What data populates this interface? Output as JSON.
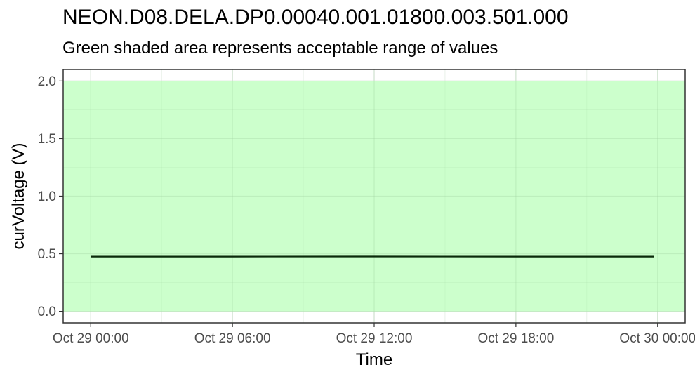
{
  "chart_data": {
    "type": "line",
    "title": "NEON.D08.DELA.DP0.00040.001.01800.003.501.000",
    "subtitle": "Green shaded area represents acceptable range of values",
    "xlabel": "Time",
    "ylabel": "curVoltage (V)",
    "xlim": [
      "2023-10-28T22:50",
      "2023-10-30T01:10"
    ],
    "ylim": [
      -0.1,
      2.1
    ],
    "x_ticks": [
      {
        "value": "2023-10-29T00:00",
        "label": "Oct 29 00:00"
      },
      {
        "value": "2023-10-29T06:00",
        "label": "Oct 29 06:00"
      },
      {
        "value": "2023-10-29T12:00",
        "label": "Oct 29 12:00"
      },
      {
        "value": "2023-10-29T18:00",
        "label": "Oct 29 18:00"
      },
      {
        "value": "2023-10-30T00:00",
        "label": "Oct 30 00:00"
      }
    ],
    "y_ticks": [
      0.0,
      0.5,
      1.0,
      1.5,
      2.0
    ],
    "y_tick_labels": [
      "0.0",
      "0.5",
      "1.0",
      "1.5",
      "2.0"
    ],
    "acceptable_range": {
      "min": 0.0,
      "max": 2.0,
      "color": "#ccffcc"
    },
    "series": [
      {
        "color": "#0a2a0a",
        "points": [
          {
            "x": "2023-10-29T00:00",
            "y": 0.475
          },
          {
            "x": "2023-10-29T06:00",
            "y": 0.475
          },
          {
            "x": "2023-10-29T12:00",
            "y": 0.476
          },
          {
            "x": "2023-10-29T18:00",
            "y": 0.475
          },
          {
            "x": "2023-10-29T23:50",
            "y": 0.475
          }
        ]
      }
    ],
    "grid": true,
    "legend": "none"
  }
}
